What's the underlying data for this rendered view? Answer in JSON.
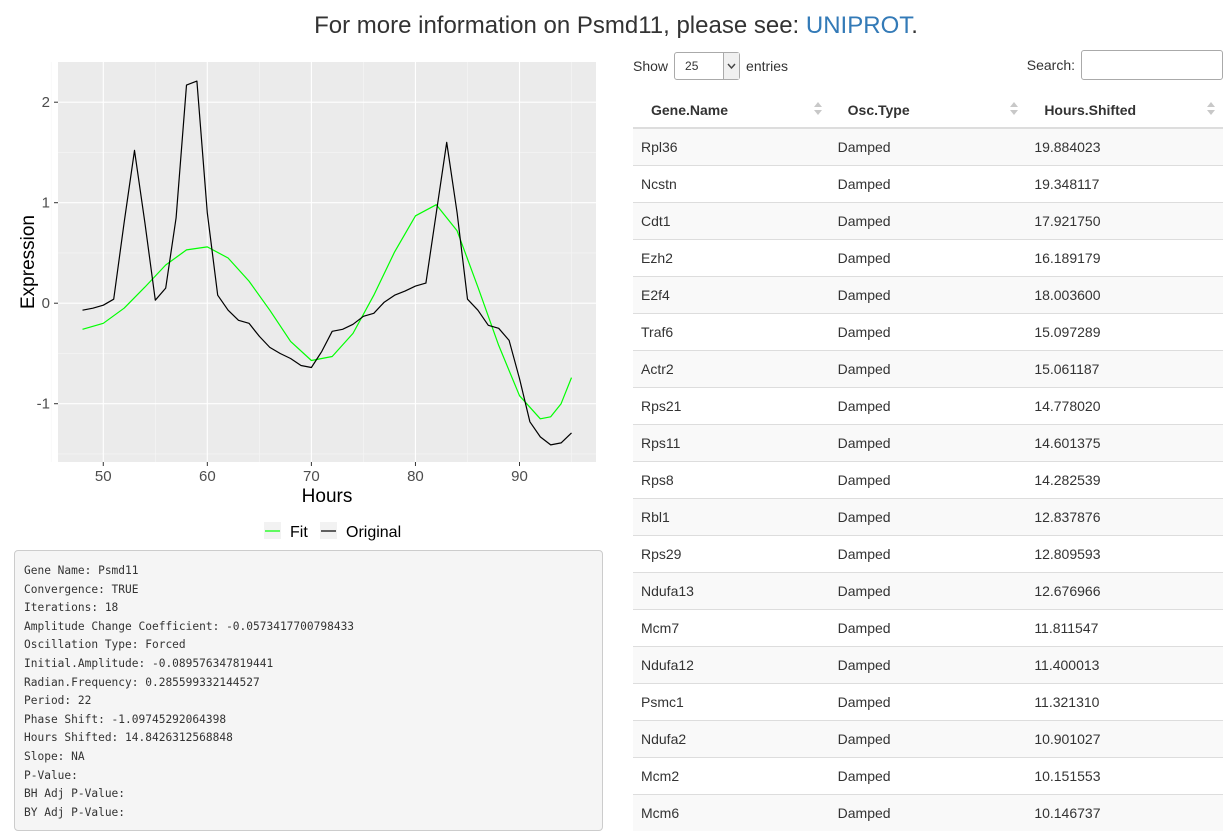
{
  "header": {
    "prefix": "For more information on Psmd11, please see: ",
    "link": "UNIPROT",
    "suffix": "."
  },
  "chart_data": {
    "type": "line",
    "xlabel": "Hours",
    "ylabel": "Expression",
    "xlim": [
      45.65,
      97.35
    ],
    "ylim": [
      -1.58,
      2.4
    ],
    "xticks": [
      50,
      60,
      70,
      80,
      90
    ],
    "yticks": [
      -1,
      0,
      1,
      2
    ],
    "grid": true,
    "legend_position": "bottom",
    "series": [
      {
        "name": "Fit",
        "color": "#00ff00",
        "x": [
          48,
          50,
          52,
          54,
          56,
          58,
          60,
          62,
          64,
          66,
          68,
          70,
          72,
          74,
          76,
          78,
          80,
          82,
          84,
          86,
          88,
          90,
          92,
          93,
          94,
          95
        ],
        "y": [
          -0.26,
          -0.2,
          -0.05,
          0.16,
          0.38,
          0.53,
          0.56,
          0.45,
          0.22,
          -0.07,
          -0.38,
          -0.57,
          -0.53,
          -0.3,
          0.08,
          0.51,
          0.87,
          0.98,
          0.72,
          0.16,
          -0.42,
          -0.92,
          -1.15,
          -1.13,
          -1.0,
          -0.74
        ]
      },
      {
        "name": "Original",
        "color": "#000000",
        "x": [
          48,
          49,
          50,
          51,
          52,
          53,
          54,
          55,
          56,
          57,
          58,
          59,
          60,
          61,
          62,
          63,
          64,
          65,
          66,
          67,
          68,
          69,
          70,
          71,
          72,
          73,
          74,
          75,
          76,
          77,
          78,
          79,
          80,
          81,
          82,
          83,
          84,
          85,
          86,
          87,
          88,
          89,
          90,
          91,
          92,
          93,
          94,
          95
        ],
        "y": [
          -0.07,
          -0.05,
          -0.02,
          0.04,
          0.8,
          1.52,
          0.8,
          0.03,
          0.15,
          0.85,
          2.17,
          2.21,
          0.9,
          0.08,
          -0.07,
          -0.17,
          -0.2,
          -0.33,
          -0.44,
          -0.5,
          -0.55,
          -0.62,
          -0.64,
          -0.48,
          -0.28,
          -0.26,
          -0.21,
          -0.13,
          -0.1,
          0.01,
          0.08,
          0.12,
          0.17,
          0.2,
          0.9,
          1.6,
          0.9,
          0.04,
          -0.07,
          -0.22,
          -0.25,
          -0.37,
          -0.75,
          -1.18,
          -1.33,
          -1.41,
          -1.39,
          -1.29
        ]
      }
    ]
  },
  "info": {
    "lines": [
      "Gene Name: Psmd11",
      "Convergence: TRUE",
      "Iterations: 18",
      "Amplitude Change Coefficient: -0.0573417700798433",
      "Oscillation Type: Forced",
      "Initial.Amplitude: -0.089576347819441",
      "Radian.Frequency: 0.285599332144527",
      "Period: 22",
      "Phase Shift: -1.09745292064398",
      "Hours Shifted: 14.8426312568848",
      "Slope: NA",
      "P-Value:",
      "BH Adj P-Value:",
      "BY Adj P-Value:"
    ]
  },
  "table": {
    "show_label": "Show",
    "entries_value": "25",
    "entries_label": "entries",
    "search_label": "Search:",
    "search_value": "",
    "columns": [
      "Gene.Name",
      "Osc.Type",
      "Hours.Shifted"
    ],
    "rows": [
      [
        "Rpl36",
        "Damped",
        "19.884023"
      ],
      [
        "Ncstn",
        "Damped",
        "19.348117"
      ],
      [
        "Cdt1",
        "Damped",
        "17.921750"
      ],
      [
        "Ezh2",
        "Damped",
        "16.189179"
      ],
      [
        "E2f4",
        "Damped",
        "18.003600"
      ],
      [
        "Traf6",
        "Damped",
        "15.097289"
      ],
      [
        "Actr2",
        "Damped",
        "15.061187"
      ],
      [
        "Rps21",
        "Damped",
        "14.778020"
      ],
      [
        "Rps11",
        "Damped",
        "14.601375"
      ],
      [
        "Rps8",
        "Damped",
        "14.282539"
      ],
      [
        "Rbl1",
        "Damped",
        "12.837876"
      ],
      [
        "Rps29",
        "Damped",
        "12.809593"
      ],
      [
        "Ndufa13",
        "Damped",
        "12.676966"
      ],
      [
        "Mcm7",
        "Damped",
        "11.811547"
      ],
      [
        "Ndufa12",
        "Damped",
        "11.400013"
      ],
      [
        "Psmc1",
        "Damped",
        "11.321310"
      ],
      [
        "Ndufa2",
        "Damped",
        "10.901027"
      ],
      [
        "Mcm2",
        "Damped",
        "10.151553"
      ],
      [
        "Mcm6",
        "Damped",
        "10.146737"
      ]
    ]
  }
}
